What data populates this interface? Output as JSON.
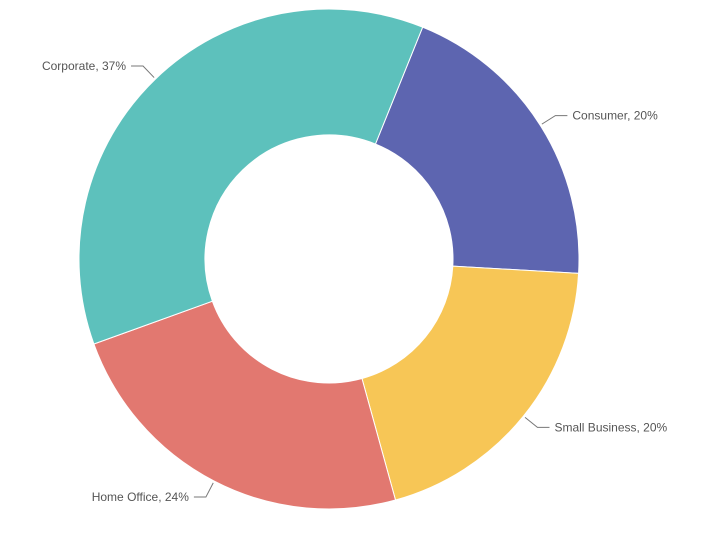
{
  "chart_data": {
    "type": "pie",
    "donut": true,
    "categories": [
      "Consumer",
      "Small Business",
      "Home Office",
      "Corporate"
    ],
    "values": [
      20,
      20,
      24,
      37
    ],
    "labels": [
      "Consumer, 20%",
      "Small Business, 20%",
      "Home Office, 24%",
      "Corporate, 37%"
    ],
    "colors": [
      "#5d65b0",
      "#f7c656",
      "#e27870",
      "#5dc1bc"
    ],
    "start_direction": "top, clockwise from Consumer"
  }
}
